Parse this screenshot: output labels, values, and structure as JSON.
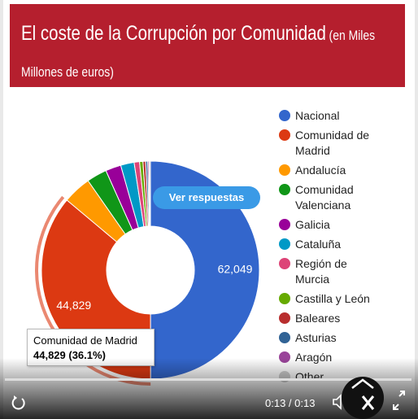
{
  "chart_data": {
    "type": "donut",
    "title": "El coste de la Corrupción por Comunidad",
    "subtitle": "(en Miles Millones de euros)",
    "categories": [
      "Nacional",
      "Comunidad de Madrid",
      "Andalucía",
      "Comunidad Valenciana",
      "Galicia",
      "Cataluña",
      "Región de Murcia",
      "Castilla y León",
      "Baleares",
      "Asturias",
      "Aragón",
      "Other"
    ],
    "values": [
      62049,
      44829,
      5216,
      3725,
      2856,
      2484,
      993,
      621,
      497,
      373,
      248,
      248
    ],
    "value_labels": [
      "62,049",
      "44,829",
      null,
      null,
      null,
      null,
      null,
      null,
      null,
      null,
      null,
      null
    ],
    "colors": [
      "#3366cc",
      "#dc3912",
      "#ff9900",
      "#109618",
      "#990099",
      "#0099c6",
      "#dd4477",
      "#66aa00",
      "#b82e2e",
      "#316395",
      "#994499",
      "#cccccc"
    ],
    "legend": "right",
    "tooltip": {
      "label": "Comunidad de Madrid",
      "value_label": "44,829 (36.1%)"
    }
  },
  "player": {
    "button": "Ver respuestas",
    "time": "0:13 / 0:13"
  }
}
